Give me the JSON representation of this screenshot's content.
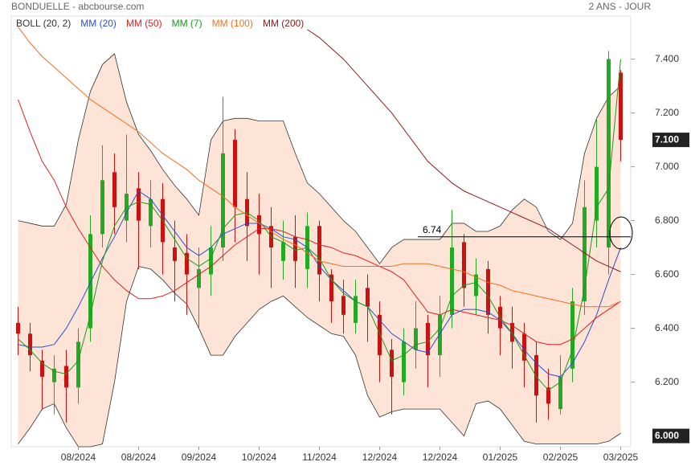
{
  "chart_data": {
    "type": "candlestick",
    "title": "BONDUELLE - abcbourse.com",
    "subtitle": "2 ANS - JOUR",
    "categories": [
      null,
      null,
      null,
      null,
      null,
      "08/2024",
      null,
      null,
      null,
      null,
      "08/2024",
      null,
      null,
      null,
      null,
      "09/2024",
      null,
      null,
      null,
      null,
      "10/2024",
      null,
      null,
      null,
      null,
      "11/2024",
      null,
      null,
      null,
      null,
      "12/2024",
      null,
      null,
      null,
      null,
      "12/2024",
      null,
      null,
      null,
      null,
      "01/2025",
      null,
      null,
      null,
      null,
      "02/2025",
      null,
      null,
      null,
      null,
      "03/2025"
    ],
    "candles": {
      "up_color": "#22aa22",
      "down_color": "#cc1111",
      "open": [
        6.42,
        6.38,
        6.28,
        6.2,
        6.26,
        6.18,
        6.4,
        6.75,
        6.98,
        6.8,
        6.92,
        6.78,
        6.88,
        6.7,
        6.68,
        6.55,
        6.6,
        6.7,
        7.1,
        6.88,
        6.82,
        6.78,
        6.65,
        6.74,
        6.62,
        6.78,
        6.6,
        6.52,
        6.42,
        6.55,
        6.45,
        6.32,
        6.2,
        6.32,
        6.42,
        6.3,
        6.45,
        6.72,
        6.52,
        6.62,
        6.48,
        6.42,
        6.38,
        6.3,
        6.18,
        6.1,
        6.25,
        6.5,
        6.8,
        6.7,
        7.35
      ],
      "high": [
        6.48,
        6.42,
        6.32,
        6.3,
        6.32,
        6.4,
        6.82,
        7.08,
        7.05,
        7.12,
        6.98,
        6.95,
        6.94,
        6.8,
        6.75,
        6.7,
        6.78,
        7.26,
        7.14,
        6.98,
        6.9,
        6.85,
        6.8,
        6.82,
        6.83,
        6.8,
        6.62,
        6.58,
        6.58,
        6.6,
        6.5,
        6.36,
        6.4,
        6.5,
        6.45,
        6.52,
        6.84,
        6.75,
        6.66,
        6.65,
        6.52,
        6.48,
        6.42,
        6.35,
        6.25,
        6.3,
        6.55,
        6.95,
        7.18,
        7.43,
        7.36
      ],
      "low": [
        6.3,
        6.24,
        6.1,
        6.08,
        6.05,
        6.12,
        6.35,
        6.7,
        6.75,
        6.72,
        6.62,
        6.7,
        6.6,
        6.5,
        6.45,
        6.4,
        6.52,
        6.65,
        6.72,
        6.65,
        6.6,
        6.55,
        6.58,
        6.55,
        6.55,
        6.5,
        6.42,
        6.38,
        6.38,
        6.35,
        6.2,
        6.08,
        6.15,
        6.25,
        6.18,
        6.22,
        6.4,
        6.48,
        6.45,
        6.38,
        6.3,
        6.25,
        6.18,
        6.05,
        6.06,
        6.08,
        6.2,
        6.45,
        6.7,
        6.6,
        7.02
      ],
      "close": [
        6.38,
        6.3,
        6.22,
        6.25,
        6.18,
        6.35,
        6.75,
        6.95,
        6.85,
        6.9,
        6.8,
        6.88,
        6.72,
        6.65,
        6.6,
        6.62,
        6.7,
        7.05,
        6.85,
        6.78,
        6.75,
        6.7,
        6.72,
        6.65,
        6.78,
        6.6,
        6.5,
        6.45,
        6.52,
        6.48,
        6.3,
        6.22,
        6.35,
        6.4,
        6.3,
        6.45,
        6.7,
        6.55,
        6.6,
        6.45,
        6.4,
        6.35,
        6.28,
        6.15,
        6.12,
        6.22,
        6.5,
        6.85,
        7.0,
        7.4,
        7.1
      ]
    },
    "band": {
      "name": "BOLL (20, 2)",
      "color": "#333333",
      "fill": "#fde4d6",
      "upper": [
        6.8,
        6.79,
        6.78,
        6.78,
        6.86,
        7.1,
        7.28,
        7.38,
        7.42,
        7.24,
        7.12,
        7.06,
        6.99,
        6.93,
        6.88,
        6.82,
        7.1,
        7.17,
        7.18,
        7.18,
        7.17,
        7.17,
        7.17,
        7.05,
        6.94,
        6.9,
        6.85,
        6.8,
        6.76,
        6.7,
        6.64,
        6.7,
        6.73,
        6.73,
        6.73,
        6.73,
        6.79,
        6.79,
        6.76,
        6.76,
        6.78,
        6.84,
        6.88,
        6.85,
        6.76,
        6.73,
        6.79,
        7.05,
        7.18,
        7.26,
        7.3
      ],
      "lower": [
        5.97,
        6.03,
        6.1,
        6.12,
        6.03,
        5.96,
        5.96,
        5.97,
        6.2,
        6.5,
        6.63,
        6.62,
        6.58,
        6.53,
        6.49,
        6.4,
        6.3,
        6.3,
        6.37,
        6.42,
        6.47,
        6.5,
        6.52,
        6.48,
        6.44,
        6.41,
        6.38,
        6.37,
        6.3,
        6.15,
        6.07,
        6.09,
        6.1,
        6.1,
        6.1,
        6.1,
        6.05,
        6.0,
        6.12,
        6.13,
        6.1,
        6.04,
        5.98,
        5.97,
        5.97,
        5.97,
        5.97,
        5.97,
        5.97,
        5.98,
        6.01
      ]
    },
    "series": [
      {
        "name": "MM (20)",
        "color": "#2a4fd6",
        "values": [
          6.34,
          6.33,
          6.33,
          6.34,
          6.4,
          6.48,
          6.57,
          6.66,
          6.74,
          6.83,
          6.91,
          6.88,
          6.82,
          6.76,
          6.7,
          6.67,
          6.7,
          6.75,
          6.77,
          6.79,
          6.79,
          6.77,
          6.74,
          6.73,
          6.7,
          6.63,
          6.58,
          6.54,
          6.5,
          6.48,
          6.43,
          6.38,
          6.35,
          6.32,
          6.31,
          6.38,
          6.45,
          6.47,
          6.47,
          6.46,
          6.43,
          6.38,
          6.32,
          6.27,
          6.23,
          6.22,
          6.27,
          6.35,
          6.45,
          6.58,
          6.7
        ]
      },
      {
        "name": "MM (50)",
        "color": "#e02020",
        "values": [
          7.25,
          7.13,
          7.02,
          6.95,
          6.85,
          6.77,
          6.7,
          6.63,
          6.58,
          6.54,
          6.51,
          6.51,
          6.52,
          6.54,
          6.57,
          6.6,
          6.63,
          6.67,
          6.71,
          6.74,
          6.77,
          6.77,
          6.76,
          6.74,
          6.73,
          6.71,
          6.7,
          6.68,
          6.67,
          6.65,
          6.63,
          6.61,
          6.58,
          6.52,
          6.46,
          6.45,
          6.47,
          6.46,
          6.45,
          6.44,
          6.43,
          6.41,
          6.38,
          6.35,
          6.34,
          6.34,
          6.36,
          6.4,
          6.44,
          6.47,
          6.5
        ]
      },
      {
        "name": "MM (7)",
        "color": "#1a9a1a",
        "values": [
          6.36,
          6.32,
          6.27,
          6.24,
          6.23,
          6.28,
          6.45,
          6.65,
          6.78,
          6.85,
          6.87,
          6.86,
          6.8,
          6.73,
          6.66,
          6.63,
          6.66,
          6.77,
          6.82,
          6.83,
          6.8,
          6.74,
          6.72,
          6.69,
          6.7,
          6.66,
          6.58,
          6.53,
          6.5,
          6.48,
          6.38,
          6.28,
          6.3,
          6.34,
          6.35,
          6.4,
          6.52,
          6.56,
          6.57,
          6.52,
          6.44,
          6.38,
          6.3,
          6.22,
          6.17,
          6.2,
          6.32,
          6.55,
          6.85,
          6.92,
          7.4
        ]
      },
      {
        "name": "MM (100)",
        "color": "#f07020",
        "values": [
          7.52,
          7.46,
          7.41,
          7.37,
          7.33,
          7.29,
          7.25,
          7.22,
          7.19,
          7.16,
          7.13,
          7.09,
          7.05,
          7.02,
          6.99,
          6.95,
          6.92,
          6.89,
          6.85,
          6.82,
          6.79,
          6.76,
          6.73,
          6.71,
          6.68,
          6.65,
          6.64,
          6.63,
          6.63,
          6.63,
          6.63,
          6.63,
          6.64,
          6.64,
          6.64,
          6.63,
          6.62,
          6.61,
          6.59,
          6.57,
          6.56,
          6.54,
          6.53,
          6.52,
          6.51,
          6.5,
          6.49,
          6.48,
          6.48,
          6.48,
          6.5
        ]
      },
      {
        "name": "MM (200)",
        "color": "#8b1a1a",
        "values": [
          null,
          null,
          null,
          null,
          null,
          null,
          null,
          null,
          null,
          null,
          null,
          null,
          null,
          null,
          null,
          null,
          null,
          null,
          null,
          null,
          null,
          null,
          null,
          null,
          7.51,
          7.48,
          7.44,
          7.4,
          7.35,
          7.3,
          7.25,
          7.2,
          7.14,
          7.08,
          7.02,
          6.98,
          6.94,
          6.91,
          6.89,
          6.87,
          6.85,
          6.83,
          6.81,
          6.79,
          6.77,
          6.74,
          6.71,
          6.68,
          6.65,
          6.63,
          6.61
        ]
      }
    ],
    "reference_line": 6.74,
    "ylim": [
      5.96,
      7.56
    ],
    "yticks": [
      {
        "value": 6.2,
        "label": "6.200"
      },
      {
        "value": 6.4,
        "label": "6.400"
      },
      {
        "value": 6.6,
        "label": "6.600"
      },
      {
        "value": 6.8,
        "label": "6.800"
      },
      {
        "value": 7.0,
        "label": "7.000"
      },
      {
        "value": 7.2,
        "label": "7.200"
      },
      {
        "value": 7.4,
        "label": "7.400"
      }
    ],
    "marked_ticks": [
      {
        "value": 7.1,
        "label": "7.100"
      },
      {
        "value": 6.0,
        "label": "6.000"
      }
    ],
    "grid": false
  }
}
